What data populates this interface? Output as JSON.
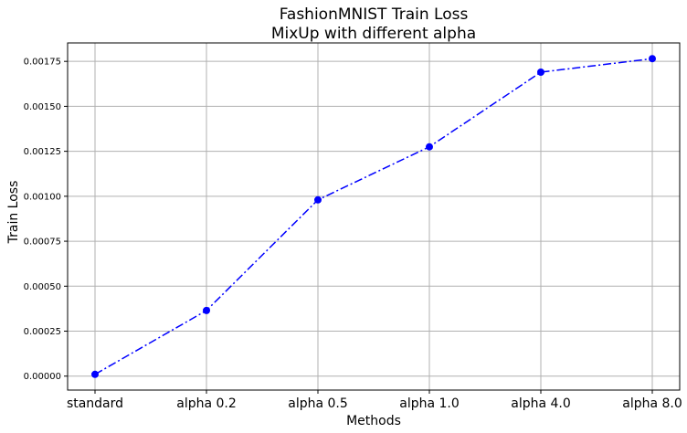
{
  "chart_data": {
    "type": "line",
    "title": "FashionMNIST Train Loss",
    "subtitle": "MixUp with different alpha",
    "xlabel": "Methods",
    "ylabel": "Train Loss",
    "categories": [
      "standard",
      "alpha 0.2",
      "alpha 0.5",
      "alpha 1.0",
      "alpha 4.0",
      "alpha 8.0"
    ],
    "series": [
      {
        "values": [
          1e-05,
          0.000365,
          0.00098,
          0.001275,
          0.00169,
          0.001765
        ],
        "color": "#0000ff",
        "line_style": "dash-dot",
        "marker": "circle"
      }
    ],
    "ylim": [
      -7.75e-05,
      0.0018525
    ],
    "yticks": [
      0.0,
      0.00025,
      0.0005,
      0.00075,
      0.001,
      0.00125,
      0.0015,
      0.00175
    ],
    "ytick_labels": [
      "0.00000",
      "0.00025",
      "0.00050",
      "0.00075",
      "0.00100",
      "0.00125",
      "0.00150",
      "0.00175"
    ],
    "grid": true,
    "legend": "none"
  }
}
